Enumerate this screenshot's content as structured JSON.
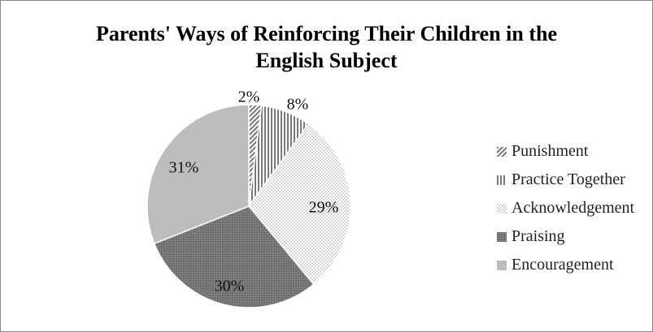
{
  "chart_data": {
    "type": "pie",
    "title": "Parents' Ways of Reinforcing Their Children in the English Subject",
    "title_lines": [
      "Parents' Ways of Reinforcing Their Children in the",
      "English Subject"
    ],
    "categories": [
      "Punishment",
      "Practice Together",
      "Acknowledgement",
      "Praising",
      "Encouragement"
    ],
    "values": [
      2,
      8,
      29,
      30,
      31
    ],
    "value_labels": [
      "2%",
      "8%",
      "29%",
      "30%",
      "31%"
    ],
    "patterns": [
      "fine-diagonal-stripes",
      "vertical-stripes",
      "light-dots",
      "dark-dots",
      "solid-light-gray"
    ],
    "colors": [
      "#777777",
      "#777777",
      "#bbbbbb",
      "#7a7a7a",
      "#bdbdbd"
    ],
    "legend_position": "right",
    "start_angle": "12 o'clock",
    "direction": "clockwise"
  }
}
